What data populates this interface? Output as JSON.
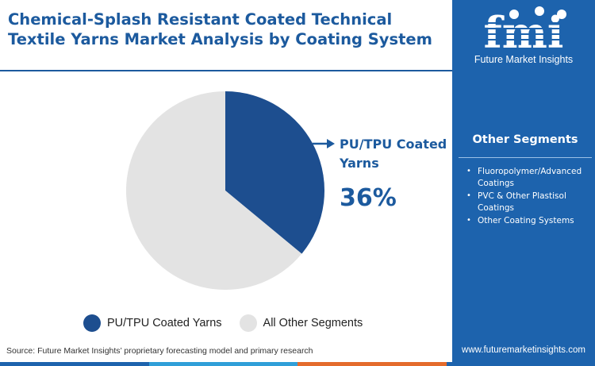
{
  "header": {
    "title": "Chemical-Splash Resistant Coated Technical Textile Yarns Market Analysis by Coating System"
  },
  "logo": {
    "wordmark": "fmi",
    "caption": "Future Market Insights"
  },
  "colors": {
    "brand_blue": "#1c5a9e",
    "sidebar_blue": "#1d63ad",
    "slice_primary": "#1d4e8f",
    "slice_other": "#e3e3e3",
    "accent_bar": [
      "#1d63ad",
      "#2f9fd8",
      "#e46b2c",
      "#1d63ad"
    ]
  },
  "chart_data": {
    "type": "pie",
    "slices": [
      {
        "label": "PU/TPU Coated Yarns",
        "value": 36,
        "color": "#1d4e8f"
      },
      {
        "label": "All Other Segments",
        "value": 64,
        "color": "#e3e3e3"
      }
    ],
    "start_angle_deg": 0,
    "direction": "clockwise",
    "legend_position": "bottom"
  },
  "callout": {
    "label": "PU/TPU Coated Yarns",
    "value": "36%"
  },
  "legend": {
    "items": [
      {
        "label": "PU/TPU Coated Yarns",
        "color": "#1d4e8f"
      },
      {
        "label": "All Other Segments",
        "color": "#e3e3e3"
      }
    ]
  },
  "sidebar": {
    "heading": "Other Segments",
    "items": [
      "Fluoropolymer/Advanced Coatings",
      "PVC & Other Plastisol Coatings",
      "Other Coating Systems"
    ]
  },
  "footer": {
    "source": "Source: Future Market Insights’ proprietary forecasting model and primary research",
    "website": "www.futuremarketinsights.com"
  }
}
